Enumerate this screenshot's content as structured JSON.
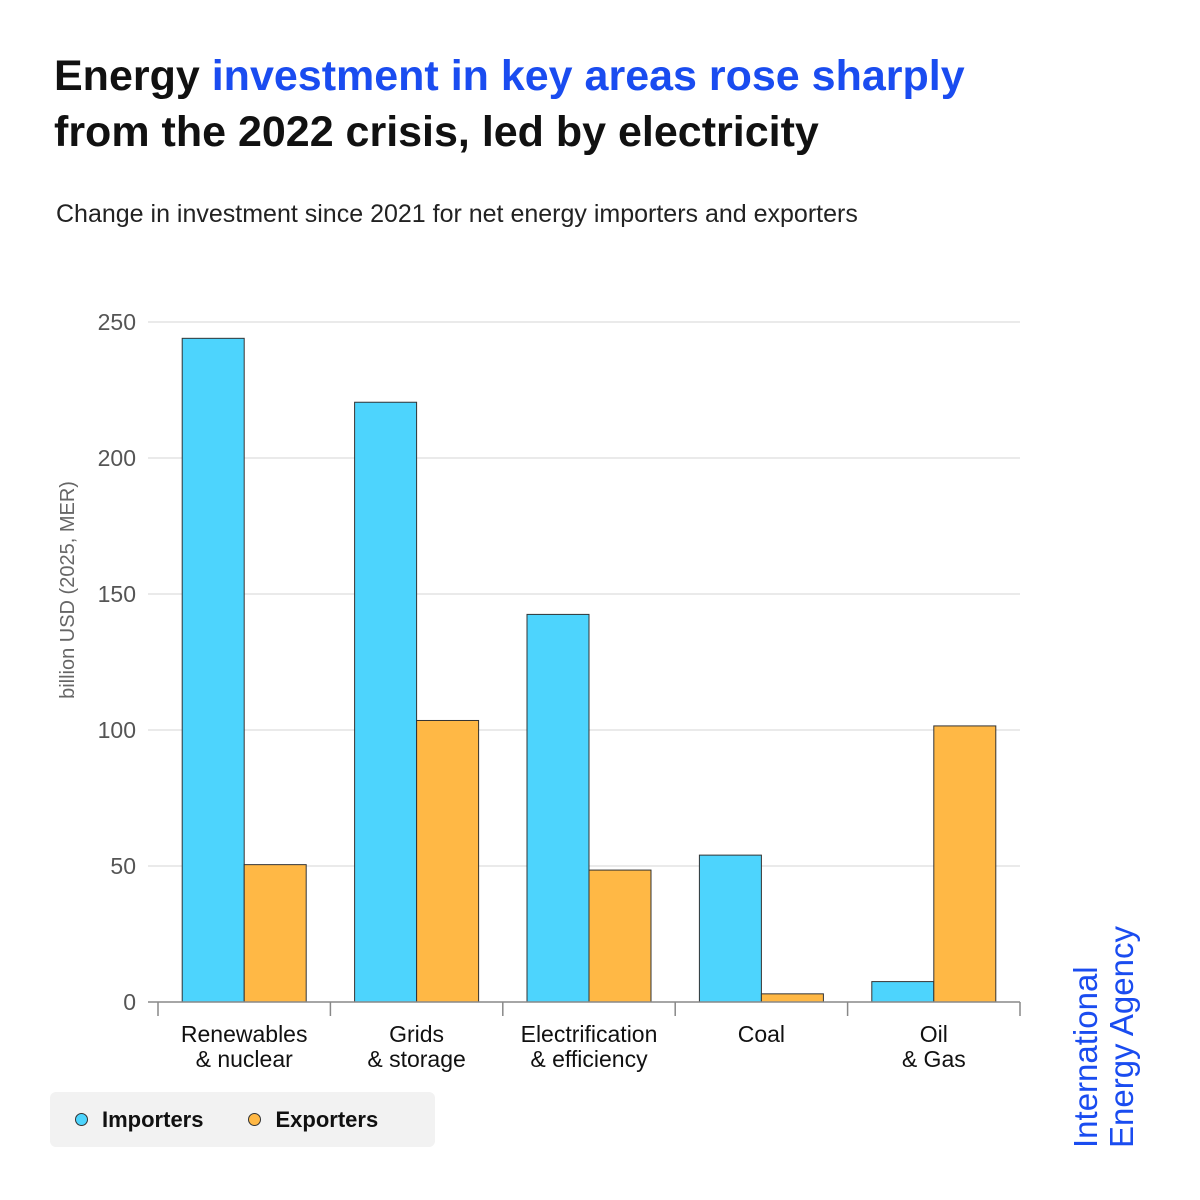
{
  "title": {
    "part1": "Energy ",
    "highlight": "investment in key areas rose sharply",
    "part2": "from the 2022 crisis, led by electricity"
  },
  "subtitle": "Change in investment since 2021 for net energy importers and exporters",
  "chart_data": {
    "type": "bar",
    "title": "Energy investment in key areas rose sharply from the 2022 crisis, led by electricity",
    "subtitle": "Change in investment since 2021 for net energy importers and exporters",
    "ylabel": "billion USD (2025, MER)",
    "xlabel": "",
    "ylim": [
      0,
      250
    ],
    "yticks": [
      0,
      50,
      100,
      150,
      200,
      250
    ],
    "grid": true,
    "legend_position": "bottom-left",
    "categories": [
      [
        "Renewables",
        "& nuclear"
      ],
      [
        "Grids",
        "& storage"
      ],
      [
        "Electrification",
        "& efficiency"
      ],
      [
        "Coal"
      ],
      [
        "Oil",
        "& Gas"
      ]
    ],
    "series": [
      {
        "name": "Importers",
        "color": "#4dd4fd",
        "values": [
          244,
          220.5,
          142.5,
          54,
          7.5
        ]
      },
      {
        "name": "Exporters",
        "color": "#ffb845",
        "values": [
          50.5,
          103.5,
          48.5,
          3,
          101.5
        ]
      }
    ]
  },
  "legend": [
    {
      "label": "Importers",
      "color": "#4dd4fd"
    },
    {
      "label": "Exporters",
      "color": "#ffb845"
    }
  ],
  "brand": {
    "line1": "International",
    "line2": "Energy Agency",
    "color": "#1a4cf0"
  }
}
